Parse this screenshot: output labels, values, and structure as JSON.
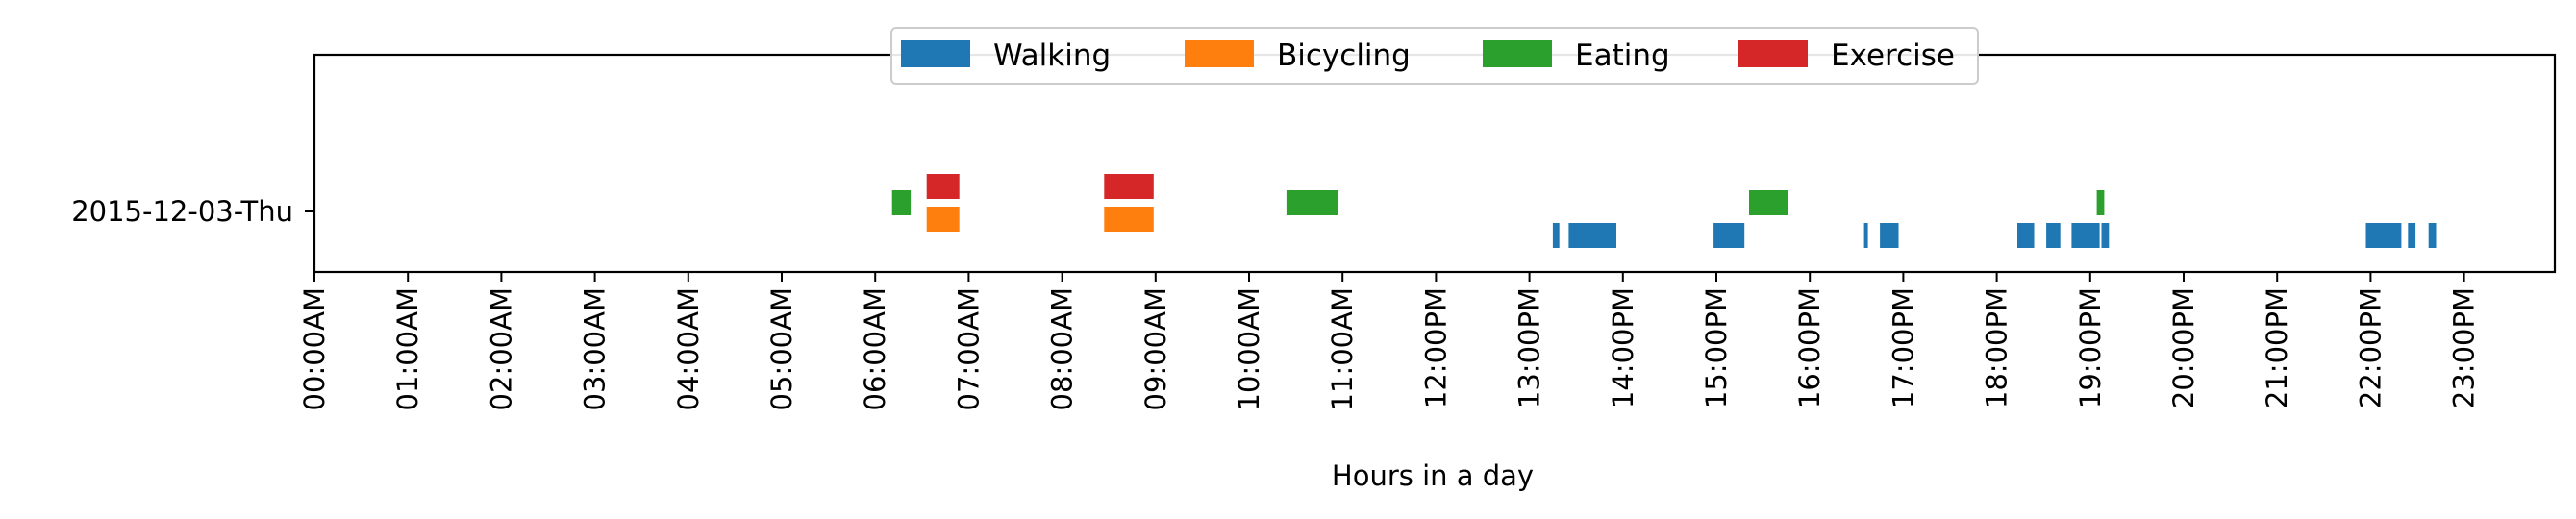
{
  "chart_data": {
    "type": "timeline",
    "xlabel": "Hours in a day",
    "ylabel": "",
    "xlim": [
      0,
      24
    ],
    "x_tick_labels": [
      "00:00AM",
      "01:00AM",
      "02:00AM",
      "03:00AM",
      "04:00AM",
      "05:00AM",
      "06:00AM",
      "07:00AM",
      "08:00AM",
      "09:00AM",
      "10:00AM",
      "11:00AM",
      "12:00PM",
      "13:00PM",
      "14:00PM",
      "15:00PM",
      "16:00PM",
      "17:00PM",
      "18:00PM",
      "19:00PM",
      "20:00PM",
      "21:00PM",
      "22:00PM",
      "23:00PM"
    ],
    "categories": [
      "2015-12-03-Thu"
    ],
    "legend_position": "top-center",
    "series": [
      {
        "name": "Walking",
        "color": "#1f77b4",
        "intervals": [
          [
            13.25,
            13.32
          ],
          [
            13.42,
            13.93
          ],
          [
            14.97,
            15.3
          ],
          [
            16.58,
            16.62
          ],
          [
            16.75,
            16.95
          ],
          [
            18.22,
            18.4
          ],
          [
            18.53,
            18.68
          ],
          [
            18.8,
            19.1
          ],
          [
            19.12,
            19.2
          ],
          [
            21.95,
            22.33
          ],
          [
            22.4,
            22.48
          ],
          [
            22.62,
            22.7
          ]
        ]
      },
      {
        "name": "Bicycling",
        "color": "#ff7f0e",
        "intervals": [
          [
            6.55,
            6.9
          ],
          [
            8.45,
            8.98
          ]
        ]
      },
      {
        "name": "Eating",
        "color": "#2ca02c",
        "intervals": [
          [
            6.18,
            6.38
          ],
          [
            10.4,
            10.95
          ],
          [
            15.35,
            15.77
          ],
          [
            19.07,
            19.15
          ]
        ]
      },
      {
        "name": "Exercise",
        "color": "#d62728",
        "intervals": [
          [
            6.55,
            6.9
          ],
          [
            8.45,
            8.98
          ]
        ]
      }
    ]
  }
}
